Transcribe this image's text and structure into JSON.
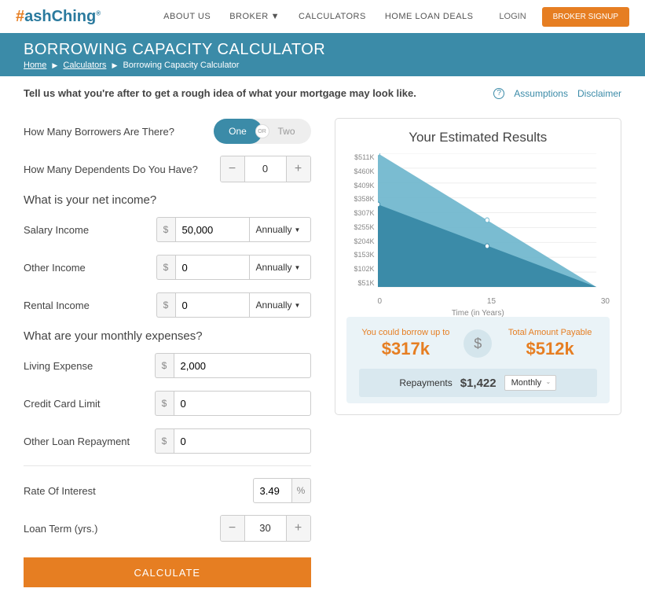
{
  "nav": {
    "about": "ABOUT US",
    "broker": "BROKER",
    "calculators": "CALCULATORS",
    "deals": "HOME LOAN DEALS",
    "login": "LOGIN",
    "signup": "BROKER SIGNUP"
  },
  "header": {
    "title": "BORROWING CAPACITY CALCULATOR",
    "crumb_home": "Home",
    "crumb_calculators": "Calculators",
    "crumb_current": "Borrowing Capacity Calculator"
  },
  "intro": {
    "text": "Tell us what you're after to get a rough idea of what your mortgage may look like.",
    "assumptions": "Assumptions",
    "disclaimer": "Disclaimer"
  },
  "form": {
    "borrowers_q": "How Many Borrowers Are There?",
    "borrowers_one": "One",
    "borrowers_two": "Two",
    "or": "OR",
    "dependents_q": "How Many Dependents Do You Have?",
    "dependents_val": "0",
    "income_heading": "What is your net income?",
    "salary_label": "Salary Income",
    "salary_val": "50,000",
    "other_income_label": "Other Income",
    "other_income_val": "0",
    "rental_label": "Rental Income",
    "rental_val": "0",
    "freq_annually": "Annually",
    "expenses_heading": "What are your monthly expenses?",
    "living_label": "Living Expense",
    "living_val": "2,000",
    "cc_label": "Credit Card Limit",
    "cc_val": "0",
    "other_loan_label": "Other Loan Repayment",
    "other_loan_val": "0",
    "rate_label": "Rate Of Interest",
    "rate_val": "3.49",
    "term_label": "Loan Term (yrs.)",
    "term_val": "30",
    "calculate": "CALCULATE"
  },
  "results": {
    "title": "Your Estimated Results",
    "y_ticks": [
      "$511K",
      "$460K",
      "$409K",
      "$358K",
      "$307K",
      "$255K",
      "$204K",
      "$153K",
      "$102K",
      "$51K"
    ],
    "x_ticks": [
      "0",
      "15",
      "30"
    ],
    "x_label": "Time (in Years)",
    "borrow_label": "You could borrow up to",
    "borrow_val": "$317k",
    "payable_label": "Total Amount Payable",
    "payable_val": "$512k",
    "repay_label": "Repayments",
    "repay_val": "$1,422",
    "repay_freq": "Monthly",
    "colors": {
      "area_top": "#6cb5cc",
      "area_bottom": "#3b8ba8",
      "accent": "#e67e22"
    }
  }
}
